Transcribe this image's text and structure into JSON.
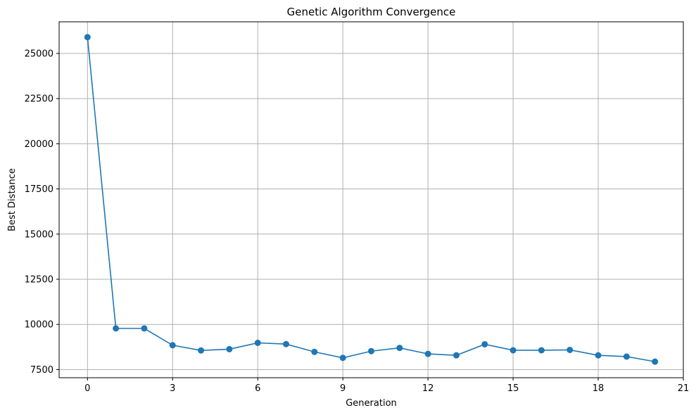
{
  "chart_data": {
    "type": "line",
    "title": "Genetic Algorithm Convergence",
    "xlabel": "Generation",
    "ylabel": "Best Distance",
    "x": [
      0,
      1,
      2,
      3,
      4,
      5,
      6,
      7,
      8,
      9,
      10,
      11,
      12,
      13,
      14,
      15,
      16,
      17,
      18,
      19,
      20
    ],
    "series": [
      {
        "values": [
          25900,
          9780,
          9780,
          8850,
          8560,
          8630,
          8980,
          8910,
          8480,
          8150,
          8520,
          8700,
          8370,
          8290,
          8900,
          8570,
          8570,
          8590,
          8290,
          8220,
          7940
        ]
      }
    ],
    "xlim": [
      -1,
      21
    ],
    "ylim": [
      7050,
      26750
    ],
    "xticks": [
      0,
      3,
      6,
      9,
      12,
      15,
      18,
      21
    ],
    "yticks": [
      7500,
      10000,
      12500,
      15000,
      17500,
      20000,
      22500,
      25000
    ],
    "grid": true,
    "colors": {
      "line": "#1f77b4",
      "grid": "#b0b0b0"
    },
    "marker": "circle"
  }
}
